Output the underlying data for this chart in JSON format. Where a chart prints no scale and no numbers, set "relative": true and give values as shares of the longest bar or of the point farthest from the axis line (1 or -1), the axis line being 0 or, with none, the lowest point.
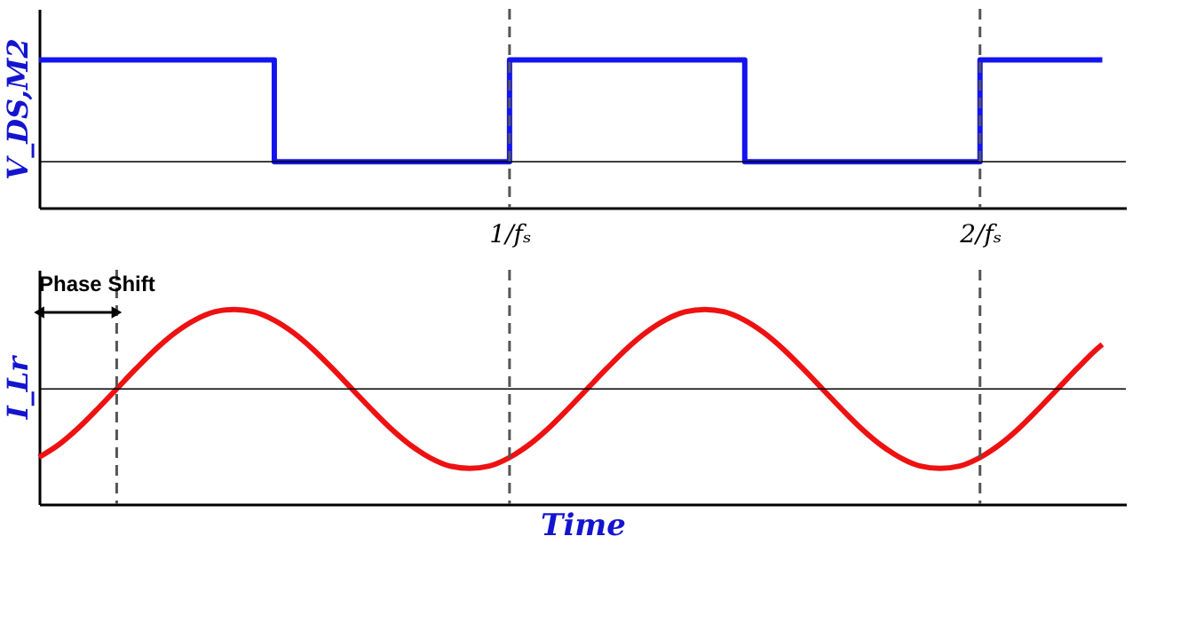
{
  "chart_data": [
    {
      "type": "step",
      "relative": true,
      "ylabel": "V_DS,M2",
      "xlim": [
        0,
        2.31
      ],
      "xticks": [
        {
          "value": 1,
          "label": "1/fₛ"
        },
        {
          "value": 2,
          "label": "2/fₛ"
        }
      ],
      "tick_labels": "x",
      "grid": false,
      "line_style": "solid",
      "x": [
        0,
        0.5,
        1,
        1.5,
        2,
        2.26
      ],
      "series": [
        {
          "color": "#1414f0",
          "values": [
            1,
            0,
            1,
            0,
            1,
            1
          ]
        }
      ],
      "ref_lines": [
        {
          "axis": "x",
          "value": 1,
          "color": "#555555",
          "line_style": "dashed"
        },
        {
          "axis": "x",
          "value": 2,
          "color": "#555555",
          "line_style": "dashed"
        }
      ]
    },
    {
      "type": "line",
      "relative": true,
      "ylabel": "I_Lr",
      "xlabel": "Time",
      "xlim": [
        0,
        2.31
      ],
      "tick_labels": false,
      "grid": false,
      "line_style": "solid",
      "x": [
        0,
        0.04,
        0.082,
        0.123,
        0.165,
        0.207,
        0.248,
        0.29,
        0.332,
        0.373,
        0.415,
        0.457,
        0.498,
        0.54,
        0.582,
        0.623,
        0.665,
        0.707,
        0.748,
        0.79,
        0.832,
        0.873,
        0.915,
        0.957,
        0.998,
        1.04,
        1.082,
        1.123,
        1.165,
        1.207,
        1.248,
        1.29,
        1.332,
        1.373,
        1.415,
        1.457,
        1.498,
        1.54,
        1.582,
        1.623,
        1.665,
        1.707,
        1.748,
        1.79,
        1.832,
        1.873,
        1.915,
        1.957,
        1.998,
        2.04,
        2.082,
        2.123,
        2.165,
        2.207,
        2.248,
        2.26
      ],
      "series": [
        {
          "color": "#ee1111",
          "values": [
            -0.86,
            -0.71,
            -0.5,
            -0.26,
            0,
            0.26,
            0.5,
            0.71,
            0.87,
            0.97,
            1,
            0.97,
            0.87,
            0.71,
            0.5,
            0.26,
            0,
            -0.26,
            -0.5,
            -0.71,
            -0.87,
            -0.97,
            -1,
            -0.97,
            -0.87,
            -0.71,
            -0.5,
            -0.26,
            0,
            0.26,
            0.5,
            0.71,
            0.87,
            0.97,
            1,
            0.97,
            0.87,
            0.71,
            0.5,
            0.26,
            0,
            -0.26,
            -0.5,
            -0.71,
            -0.87,
            -0.97,
            -1,
            -0.97,
            -0.87,
            -0.71,
            -0.5,
            -0.26,
            0,
            0.26,
            0.5,
            0.56
          ]
        }
      ],
      "ref_lines": [
        {
          "axis": "x",
          "value": 0.165,
          "color": "#555555",
          "line_style": "dashed"
        },
        {
          "axis": "x",
          "value": 1,
          "color": "#555555",
          "line_style": "dashed"
        },
        {
          "axis": "x",
          "value": 2,
          "color": "#555555",
          "line_style": "dashed"
        }
      ],
      "annotations": [
        {
          "text": "Phase Shift",
          "x": 0.165
        }
      ]
    }
  ]
}
